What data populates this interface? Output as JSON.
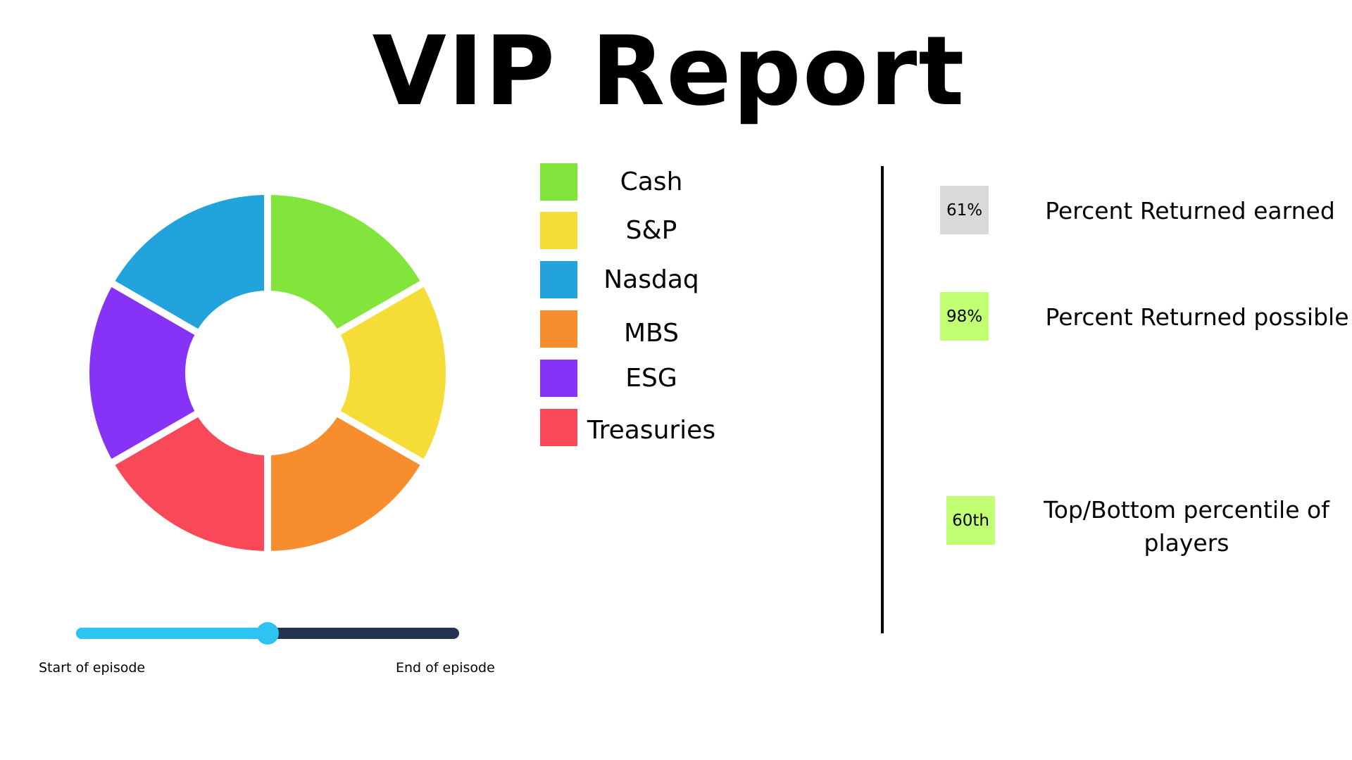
{
  "title": "VIP Report",
  "chart_data": {
    "type": "pie",
    "categories": [
      "Cash",
      "S&P",
      "MBS",
      "Treasuries",
      "ESG",
      "Nasdaq"
    ],
    "values": [
      1,
      1,
      1,
      1,
      1,
      1
    ],
    "colors": [
      "#82e53b",
      "#f5dc36",
      "#f78d2d",
      "#f94857",
      "#8632f7",
      "#22a3dc"
    ],
    "donut": true
  },
  "legend": [
    {
      "label": "Cash",
      "color": "#82e53b"
    },
    {
      "label": "S&P",
      "color": "#f5dc36"
    },
    {
      "label": "Nasdaq",
      "color": "#22a3dc"
    },
    {
      "label": "MBS",
      "color": "#f78d2d"
    },
    {
      "label": "ESG",
      "color": "#8632f7"
    },
    {
      "label": "Treasuries",
      "color": "#f94857"
    }
  ],
  "stats": [
    {
      "value": "61%",
      "label": "Percent Returned earned",
      "badge_color": "#d9d9d9"
    },
    {
      "value": "98%",
      "label": "Percent Returned possible",
      "badge_color": "#c1ff72"
    },
    {
      "value": "60th",
      "label_line1": "Top/Bottom percentile of",
      "label_line2": "players",
      "badge_color": "#c1ff72"
    }
  ],
  "slider": {
    "value": 0.5,
    "start_label": "Start of episode",
    "end_label": "End of episode",
    "fill_color": "#2ec4f2",
    "track_color": "#24334f"
  }
}
